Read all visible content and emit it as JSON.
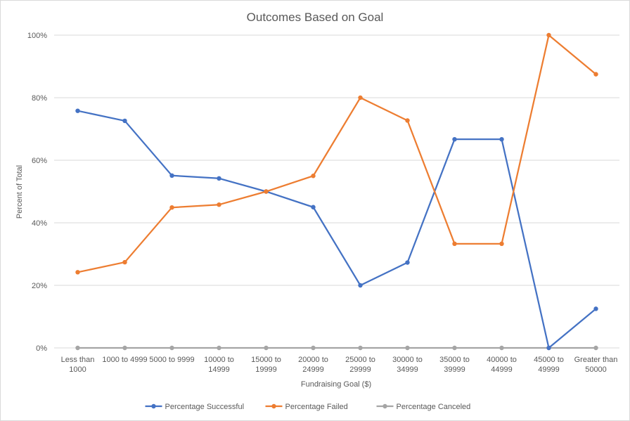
{
  "chart_data": {
    "type": "line",
    "title": "Outcomes Based on Goal",
    "xlabel": "Fundraising Goal ($)",
    "ylabel": "Percent of Total",
    "ylim": [
      0,
      100
    ],
    "yticks": [
      "0%",
      "20%",
      "40%",
      "60%",
      "80%",
      "100%"
    ],
    "ytick_values": [
      0,
      20,
      40,
      60,
      80,
      100
    ],
    "grid": true,
    "legend_position": "bottom",
    "categories": [
      [
        "Less than",
        "1000"
      ],
      [
        "1000 to 4999"
      ],
      [
        "5000 to 9999"
      ],
      [
        "10000 to",
        "14999"
      ],
      [
        "15000 to",
        "19999"
      ],
      [
        "20000 to",
        "24999"
      ],
      [
        "25000 to",
        "29999"
      ],
      [
        "30000 to",
        "34999"
      ],
      [
        "35000 to",
        "39999"
      ],
      [
        "40000 to",
        "44999"
      ],
      [
        "45000 to",
        "49999"
      ],
      [
        "Greater than",
        "50000"
      ]
    ],
    "series": [
      {
        "name": "Percentage Successful",
        "color": "#4472C4",
        "values": [
          75.8,
          72.6,
          55.1,
          54.2,
          50.0,
          45.0,
          20.0,
          27.3,
          66.7,
          66.7,
          0.0,
          12.5
        ]
      },
      {
        "name": "Percentage Failed",
        "color": "#ED7D31",
        "values": [
          24.2,
          27.4,
          44.9,
          45.8,
          50.0,
          55.0,
          80.0,
          72.7,
          33.3,
          33.3,
          100.0,
          87.5
        ]
      },
      {
        "name": "Percentage Canceled",
        "color": "#A5A5A5",
        "values": [
          0,
          0,
          0,
          0,
          0,
          0,
          0,
          0,
          0,
          0,
          0,
          0
        ]
      }
    ]
  }
}
